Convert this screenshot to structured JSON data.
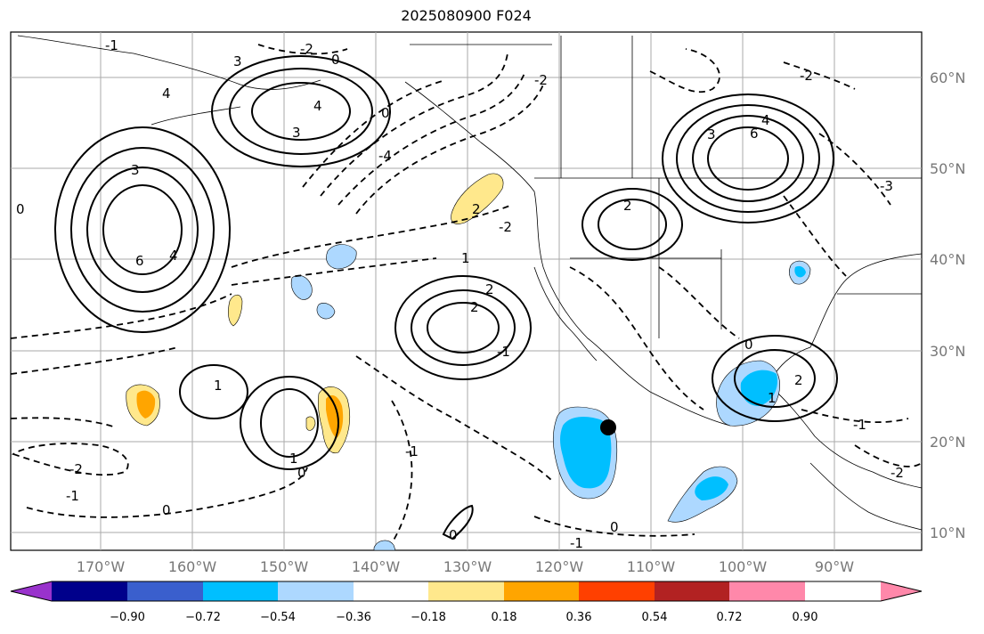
{
  "title": "2025080900 F024",
  "map": {
    "lon_range": [
      -180,
      -81
    ],
    "lat_range": [
      8,
      65
    ],
    "lat_ticks": [
      "60°N",
      "50°N",
      "40°N",
      "30°N",
      "20°N",
      "10°N"
    ],
    "lon_ticks": [
      "170°W",
      "160°W",
      "150°W",
      "140°W",
      "130°W",
      "120°W",
      "110°W",
      "100°W",
      "90°W"
    ],
    "contour_labels": [
      "3",
      "4",
      "6",
      "4",
      "3",
      "0",
      "-2",
      "0",
      "4",
      "3",
      "-4",
      "2",
      "-2",
      "1",
      "-1",
      "2",
      "-2",
      "3",
      "6",
      "4",
      "2",
      "-2",
      "-3",
      "0",
      "-1",
      "2",
      "1",
      "0",
      "1",
      "-1",
      "-2",
      "-1",
      "0",
      "-1",
      "0",
      "1",
      "2",
      "0",
      "-1",
      "-2",
      "0"
    ],
    "marker": {
      "label": "storm-center",
      "lon": -114.5,
      "lat": 21.5,
      "color": "#000000"
    },
    "shaded_colors": {
      "neg_light": "#add8ff",
      "neg_mid": "#00bfff",
      "pos_light": "#ffe88c",
      "pos_mid": "#ffa500"
    }
  },
  "colorbar": {
    "ticks": [
      "−0.90",
      "−0.72",
      "−0.54",
      "−0.36",
      "−0.18",
      "0.18",
      "0.36",
      "0.54",
      "0.72",
      "0.90"
    ],
    "colors": [
      "#9932cc",
      "#00008b",
      "#3a5fcd",
      "#00bfff",
      "#add8ff",
      "#ffffff",
      "#ffe88c",
      "#ffa500",
      "#ff4000",
      "#b22222",
      "#ff88aa"
    ]
  }
}
